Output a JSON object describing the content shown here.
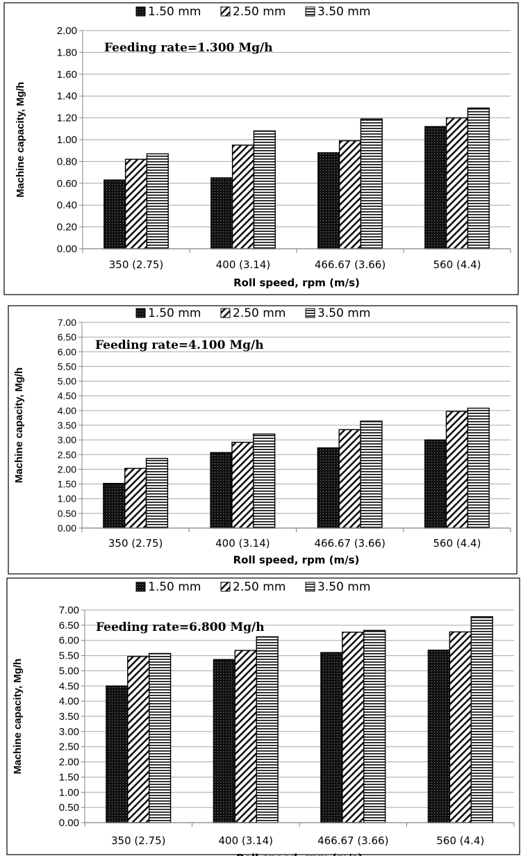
{
  "chart_data": [
    {
      "type": "bar",
      "annotation": "Feeding rate=1.300 Mg/h",
      "xlabel": "Roll speed, rpm (m/s)",
      "ylabel": "Machine capacity, Mg/h",
      "categories": [
        "350 (2.75)",
        "400 (3.14)",
        "466.67 (3.66)",
        "560 (4.4)"
      ],
      "ylim": [
        0,
        2.0
      ],
      "yticks": [
        "0.00",
        "0.20",
        "0.40",
        "0.60",
        "0.80",
        "1.00",
        "1.20",
        "1.40",
        "1.60",
        "1.80",
        "2.00"
      ],
      "grid": true,
      "legend_position": "top",
      "series": [
        {
          "name": "1.50 mm",
          "values": [
            0.63,
            0.65,
            0.88,
            1.12
          ]
        },
        {
          "name": "2.50 mm",
          "values": [
            0.82,
            0.95,
            0.99,
            1.2
          ]
        },
        {
          "name": "3.50 mm",
          "values": [
            0.87,
            1.08,
            1.19,
            1.29
          ]
        }
      ]
    },
    {
      "type": "bar",
      "annotation": "Feeding rate=4.100 Mg/h",
      "xlabel": "Roll speed, rpm (m/s)",
      "ylabel": "Machine capacity, Mg/h",
      "categories": [
        "350 (2.75)",
        "400 (3.14)",
        "466.67 (3.66)",
        "560 (4.4)"
      ],
      "ylim": [
        0,
        7.0
      ],
      "yticks": [
        "0.00",
        "0.50",
        "1.00",
        "1.50",
        "2.00",
        "2.50",
        "3.00",
        "3.50",
        "4.00",
        "4.50",
        "5.00",
        "5.50",
        "6.00",
        "6.50",
        "7.00"
      ],
      "grid": true,
      "legend_position": "top",
      "series": [
        {
          "name": "1.50 mm",
          "values": [
            1.52,
            2.57,
            2.73,
            3.0
          ]
        },
        {
          "name": "2.50 mm",
          "values": [
            2.03,
            2.92,
            3.35,
            3.97
          ]
        },
        {
          "name": "3.50 mm",
          "values": [
            2.37,
            3.2,
            3.64,
            4.08
          ]
        }
      ]
    },
    {
      "type": "bar",
      "annotation": "Feeding rate=6.800 Mg/h",
      "xlabel": "Roll speed, rpm (m/s)",
      "ylabel": "Machine capacity, Mg/h",
      "categories": [
        "350 (2.75)",
        "400 (3.14)",
        "466.67 (3.66)",
        "560 (4.4)"
      ],
      "ylim": [
        0,
        7.0
      ],
      "yticks": [
        "0.00",
        "0.50",
        "1.00",
        "1.50",
        "2.00",
        "2.50",
        "3.00",
        "3.50",
        "4.00",
        "4.50",
        "5.00",
        "5.50",
        "6.00",
        "6.50",
        "7.00"
      ],
      "grid": true,
      "legend_position": "top",
      "series": [
        {
          "name": "1.50 mm",
          "values": [
            4.5,
            5.37,
            5.6,
            5.68
          ]
        },
        {
          "name": "2.50 mm",
          "values": [
            5.47,
            5.67,
            6.27,
            6.28
          ]
        },
        {
          "name": "3.50 mm",
          "values": [
            5.57,
            6.12,
            6.33,
            6.78
          ]
        }
      ]
    }
  ]
}
